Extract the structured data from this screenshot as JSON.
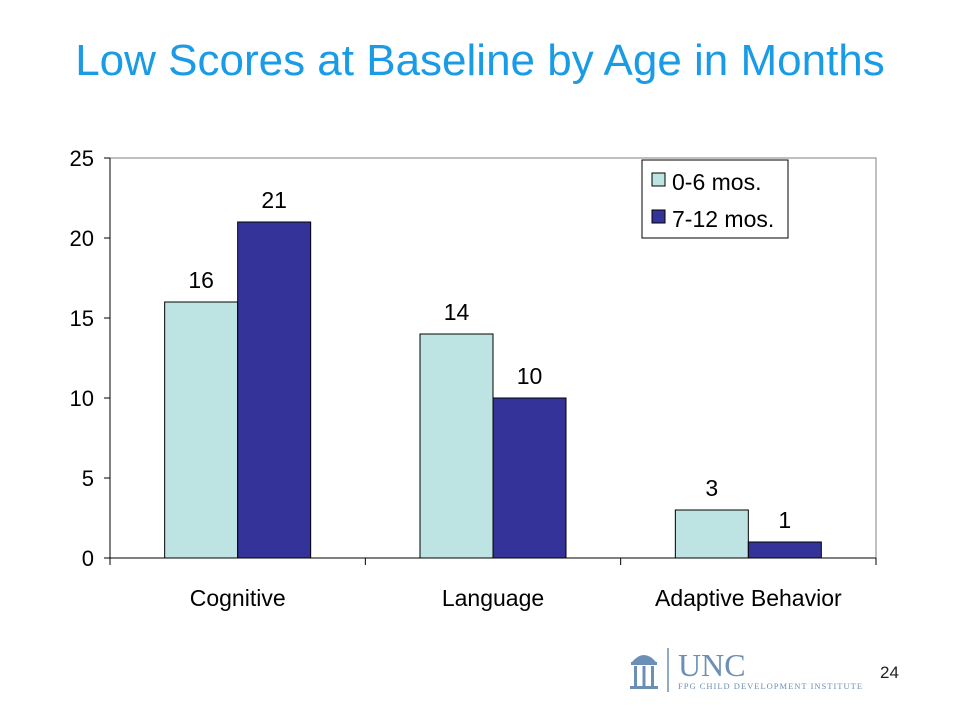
{
  "slide": {
    "title": "Low Scores at Baseline by Age in Months",
    "page_number": "24"
  },
  "logo": {
    "name": "UNC",
    "subtitle": "FPG CHILD DEVELOPMENT INSTITUTE",
    "icon": "old-well-icon",
    "color": "#6b8fb5"
  },
  "chart_data": {
    "type": "bar",
    "title": "",
    "xlabel": "",
    "ylabel": "",
    "categories": [
      "Cognitive",
      "Language",
      "Adaptive Behavior"
    ],
    "series": [
      {
        "name": "0-6 mos.",
        "values": [
          16,
          14,
          3
        ],
        "color": "#bde3e3"
      },
      {
        "name": "7-12 mos.",
        "values": [
          21,
          10,
          1
        ],
        "color": "#333399"
      }
    ],
    "ylim": [
      0,
      25
    ],
    "yticks": [
      0,
      5,
      10,
      15,
      20,
      25
    ],
    "grid": false,
    "legend": "top-right",
    "data_labels": true
  }
}
